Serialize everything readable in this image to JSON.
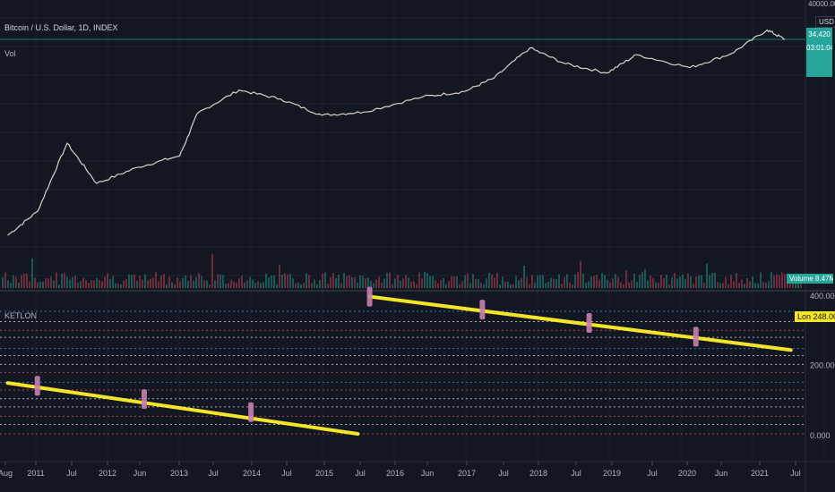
{
  "header": {
    "title": "Bitcoin / U.S. Dollar, 1D, INDEX",
    "volume_label": "Vol",
    "indicator_label": "KETLON"
  },
  "price_axis": {
    "currency": "USD",
    "top_label": "40000.00",
    "price_badge_line1": "34,420",
    "price_badge_line2": "03:01:04",
    "volume_badge": "Volume 8.47M"
  },
  "indicator_axis": {
    "labels": [
      "400.000",
      "200.000",
      "0.000"
    ],
    "line_badge": "Lon 248.000"
  },
  "time_axis": {
    "labels": [
      "Aug",
      "2011",
      "Jul",
      "2012",
      "Jun",
      "2013",
      "Jul",
      "2014",
      "Jul",
      "2015",
      "Jul",
      "2016",
      "Jun",
      "2017",
      "Jul",
      "2018",
      "Jul",
      "2019",
      "Jul",
      "2020",
      "Jun",
      "2021",
      "Jul"
    ]
  },
  "colors": {
    "background": "#131722",
    "grid": "#1e222d",
    "price_line": "#d8d2c8",
    "volume": "#26a69a",
    "trend_line": "#f5e52a",
    "marker": "#c77fb0",
    "level_blue": "#2d8bd1",
    "level_red": "#d6485c",
    "level_white": "#c8c8c8",
    "badge_teal": "#26a69a"
  },
  "chart_data": {
    "type": "line",
    "price_series": {
      "x": [
        "2010-08",
        "2011-01",
        "2011-06",
        "2011-11",
        "2012-06",
        "2013-01",
        "2013-04",
        "2013-11",
        "2014-06",
        "2015-01",
        "2015-08",
        "2016-06",
        "2017-01",
        "2017-06",
        "2017-12",
        "2018-06",
        "2019-01",
        "2019-06",
        "2020-03",
        "2020-10",
        "2021-04",
        "2021-07"
      ],
      "values": [
        0.06,
        0.3,
        30,
        2,
        6,
        13,
        230,
        1100,
        600,
        200,
        250,
        700,
        1000,
        2500,
        19000,
        6500,
        3500,
        12000,
        5000,
        13000,
        64000,
        34000
      ]
    },
    "indicator": {
      "ylim": [
        0,
        400
      ],
      "ticks": [
        400,
        200,
        0
      ],
      "levels": [
        {
          "value": 354,
          "color": "blue"
        },
        {
          "value": 325,
          "color": "white"
        },
        {
          "value": 300,
          "color": "red"
        },
        {
          "value": 280,
          "color": "white"
        },
        {
          "value": 248,
          "color": "blue"
        },
        {
          "value": 228,
          "color": "white"
        },
        {
          "value": 203,
          "color": "white"
        },
        {
          "value": 180,
          "color": "red"
        },
        {
          "value": 152,
          "color": "blue"
        },
        {
          "value": 130,
          "color": "red"
        },
        {
          "value": 105,
          "color": "white"
        },
        {
          "value": 82,
          "color": "white"
        },
        {
          "value": 55,
          "color": "red"
        },
        {
          "value": 32,
          "color": "white"
        },
        {
          "value": 5,
          "color": "red"
        }
      ],
      "trend_lines": [
        {
          "x_start": "2010-08",
          "x_end": "2015-07",
          "y_start": 150,
          "y_end": 5
        },
        {
          "x_start": "2015-09",
          "x_end": "2021-08",
          "y_start": 396,
          "y_end": 244
        }
      ],
      "markers": [
        {
          "x": "2011-01",
          "y": 142
        },
        {
          "x": "2012-07",
          "y": 104
        },
        {
          "x": "2014-01",
          "y": 67
        },
        {
          "x": "2015-09",
          "y": 396
        },
        {
          "x": "2017-04",
          "y": 359
        },
        {
          "x": "2018-10",
          "y": 321
        },
        {
          "x": "2020-04",
          "y": 282
        }
      ]
    }
  }
}
